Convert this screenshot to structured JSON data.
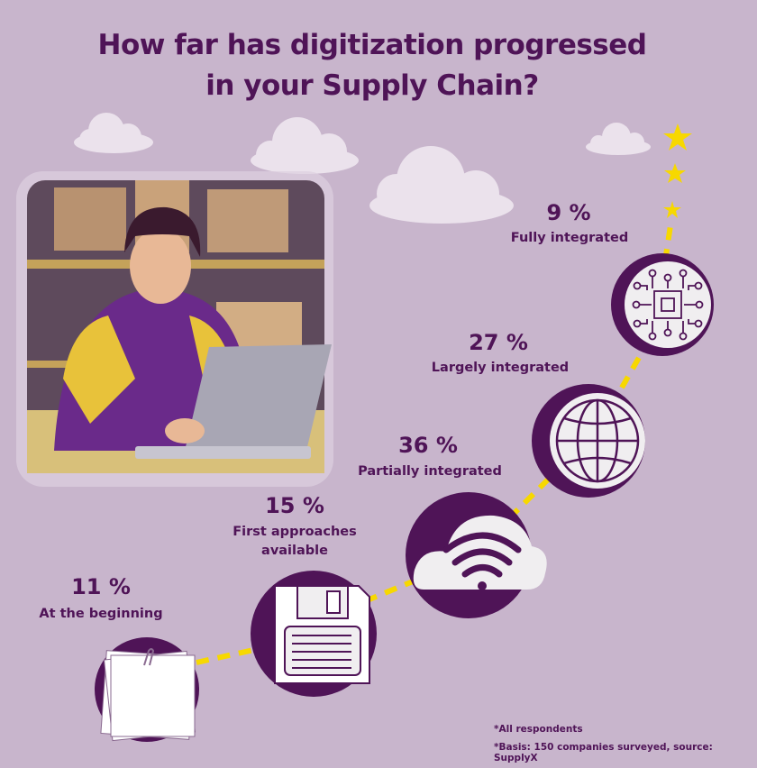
{
  "title": [
    "How far has digitization progressed",
    "in your Supply Chain?"
  ],
  "colors": {
    "background": "#c8b5cc",
    "accent": "#4f1457",
    "path": "#f7d800",
    "icon_fill": "#f0eef0"
  },
  "chart_data": {
    "type": "infographic-steps",
    "title": "How far has digitization progressed in your Supply Chain?",
    "unit": "%",
    "steps": [
      {
        "label": "At the beginning",
        "value": 11,
        "value_text": "11 %",
        "icon": "paper-notes-icon"
      },
      {
        "label": "First approaches available",
        "label_lines": [
          "First approaches",
          "available"
        ],
        "value": 15,
        "value_text": "15 %",
        "icon": "floppy-disk-icon"
      },
      {
        "label": "Partially integrated",
        "value": 36,
        "value_text": "36 %",
        "icon": "cloud-wifi-icon"
      },
      {
        "label": "Largely integrated",
        "value": 27,
        "value_text": "27 %",
        "icon": "globe-icon"
      },
      {
        "label": "Fully integrated",
        "value": 9,
        "value_text": "9 %",
        "icon": "circuit-chip-icon"
      }
    ]
  },
  "footnotes": [
    "*All respondents",
    "*Basis: 150 companies surveyed, source: SupplyX"
  ]
}
